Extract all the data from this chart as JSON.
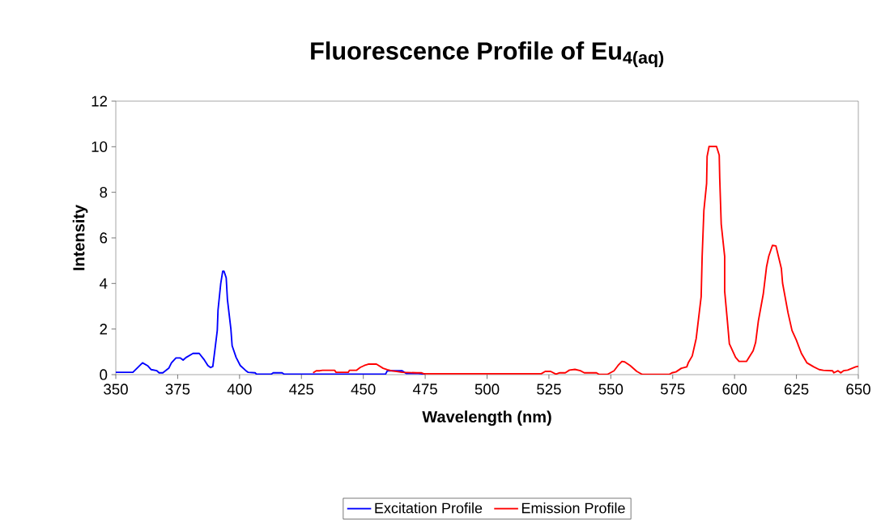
{
  "chart_data": {
    "type": "line",
    "title": "Fluorescence Profile of Eu$_{4(aq)}$",
    "xlabel": "Wavelength (nm)",
    "ylabel": "Intensity",
    "xlim": [
      350,
      650
    ],
    "xticks": [
      350,
      375,
      400,
      425,
      450,
      475,
      500,
      525,
      550,
      575,
      600,
      625,
      650
    ],
    "ylim": [
      0,
      12
    ],
    "yticks": [
      0,
      2,
      4,
      6,
      8,
      10,
      12
    ],
    "legend": "bottom",
    "marker": "none",
    "line_style": "solid",
    "series": [
      {
        "name": "Excitation Profile",
        "color": "#0000ff",
        "x": [
          350,
          356.9,
          360.8,
          363,
          364.3,
          366.6,
          367.5,
          369,
          371.4,
          372.5,
          374.3,
          376.1,
          377.2,
          378.5,
          381.2,
          383.7,
          385.6,
          387.2,
          388.3,
          389.2,
          390,
          391,
          391.3,
          392.4,
          393.2,
          393.7,
          394.6,
          395.1,
          396.5,
          397,
          398.6,
          400.3,
          402.4,
          403.5,
          406.3,
          406.8,
          412.8,
          413.6,
          417.2,
          418,
          459,
          459.7,
          465.7,
          467.3,
          472.2,
          475
        ],
        "values": [
          0.1,
          0.1,
          0.52,
          0.38,
          0.22,
          0.17,
          0.08,
          0.08,
          0.28,
          0.52,
          0.73,
          0.73,
          0.64,
          0.76,
          0.93,
          0.93,
          0.67,
          0.4,
          0.31,
          0.36,
          1.05,
          1.94,
          2.83,
          4.0,
          4.54,
          4.54,
          4.25,
          3.3,
          2.0,
          1.27,
          0.76,
          0.4,
          0.19,
          0.1,
          0.08,
          0.02,
          0.02,
          0.08,
          0.08,
          0.02,
          0.02,
          0.17,
          0.17,
          0.05,
          0.05,
          0.02
        ]
      },
      {
        "name": "Emission Profile",
        "color": "#ff0000",
        "x": [
          429.7,
          431,
          432.4,
          433.5,
          438.4,
          439,
          443.9,
          444.4,
          447.2,
          448.8,
          450.4,
          452,
          455.3,
          458,
          459.7,
          461.3,
          465.7,
          471.7,
          473.4,
          474.4,
          521.9,
          523.5,
          525.7,
          527.8,
          529.4,
          531.6,
          533.3,
          535.5,
          537.7,
          539.3,
          544.2,
          545.3,
          548.6,
          551.3,
          552.9,
          554.5,
          555.6,
          557.8,
          560.5,
          562.7,
          573.6,
          574.7,
          576.3,
          578.5,
          580.7,
          581.3,
          582.9,
          584.5,
          586.5,
          586.9,
          587.6,
          588.7,
          588.9,
          589.7,
          592.7,
          593.8,
          594.0,
          594.6,
          596.0,
          596.0,
          597.1,
          597.9,
          600.4,
          601.8,
          604.8,
          607.5,
          608.5,
          609.6,
          611.6,
          612.9,
          613.8,
          615.3,
          616.7,
          618.9,
          619.4,
          621.6,
          623.2,
          624.9,
          627.0,
          629.2,
          632.0,
          634.2,
          635.8,
          639.6,
          640.1,
          641.8,
          642.9,
          644.0,
          645.7,
          648.9,
          650
        ],
        "values": [
          0.08,
          0.17,
          0.17,
          0.19,
          0.19,
          0.1,
          0.1,
          0.19,
          0.19,
          0.32,
          0.4,
          0.46,
          0.46,
          0.28,
          0.22,
          0.17,
          0.1,
          0.08,
          0.08,
          0.04,
          0.04,
          0.14,
          0.14,
          0.02,
          0.08,
          0.08,
          0.2,
          0.23,
          0.17,
          0.08,
          0.08,
          0.01,
          0.01,
          0.17,
          0.4,
          0.58,
          0.56,
          0.4,
          0.14,
          0.01,
          0.01,
          0.08,
          0.12,
          0.28,
          0.34,
          0.52,
          0.82,
          1.59,
          3.42,
          5.19,
          7.2,
          8.39,
          9.57,
          10.01,
          10.01,
          9.63,
          8.63,
          6.61,
          5.19,
          3.66,
          2.35,
          1.35,
          0.76,
          0.58,
          0.58,
          1.05,
          1.41,
          2.35,
          3.54,
          4.72,
          5.19,
          5.67,
          5.65,
          4.66,
          4.01,
          2.71,
          1.94,
          1.53,
          0.93,
          0.52,
          0.34,
          0.22,
          0.19,
          0.17,
          0.08,
          0.17,
          0.08,
          0.17,
          0.2,
          0.34,
          0.37
        ]
      }
    ]
  }
}
